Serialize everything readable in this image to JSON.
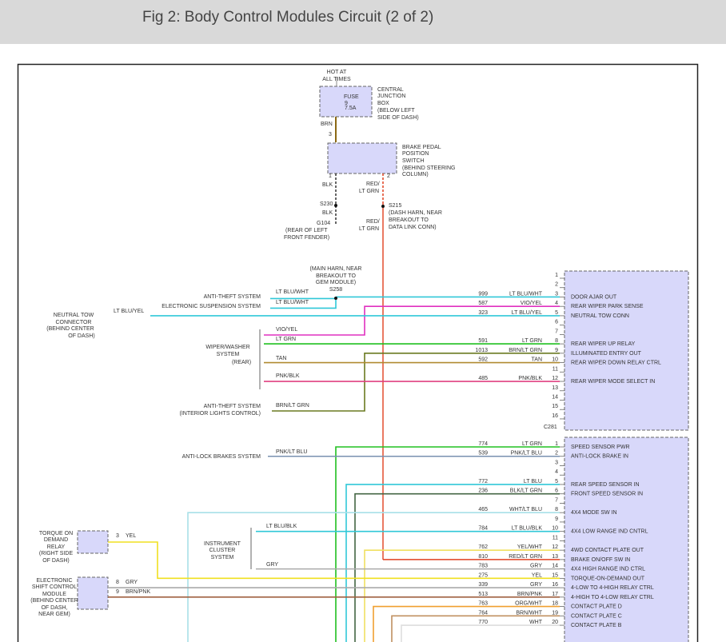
{
  "header": {
    "title": "Fig 2: Body Control Modules Circuit (2 of 2)"
  },
  "labels": [
    "HOT AT",
    "ALL TIMES",
    "FUSE",
    "9",
    "7.5A",
    "CENTRAL",
    "JUNCTION",
    "BOX",
    "(BELOW LEFT",
    "SIDE OF DASH)",
    "BRN",
    "3",
    "BRAKE PEDAL",
    "POSITION",
    "SWITCH",
    "(BEHIND STEERING",
    "COLUMN)",
    "1",
    "2",
    "BLK",
    "RED/",
    "LT GRN",
    "S230",
    "BLK",
    "G104",
    "(REAR OF LEFT",
    "FRONT FENDER)",
    "S215",
    "(DASH HARN, NEAR",
    "BREAKOUT TO",
    "DATA LINK CONN)",
    "RED/",
    "LT GRN",
    "(MAIN HARN, NEAR",
    "BREAKOUT TO",
    "GEM MODULE)",
    "S258",
    "ANTI-THEFT SYSTEM",
    "ELECTRONIC SUSPENSION SYSTEM",
    "LT BLU/WHT",
    "LT BLU/WHT",
    "LT BLU/YEL",
    "NEUTRAL TOW",
    "CONNECTOR",
    "(BEHIND CENTER",
    "OF DASH)",
    "VIO/YEL",
    "LT GRN",
    "WIPER/WASHER",
    "SYSTEM",
    "TAN",
    "(REAR)",
    "PNK/BLK",
    "ANTI-THEFT SYSTEM",
    "(INTERIOR LIGHTS CONTROL)",
    "BRN/LT GRN",
    "ANTI-LOCK BRAKES SYSTEM",
    "PNK/LT BLU",
    "TORQUE ON",
    "DEMAND",
    "RELAY",
    "(RIGHT SIDE",
    "OF DASH)",
    "3",
    "YEL",
    "INSTRUMENT",
    "CLUSTER",
    "SYSTEM",
    "LT BLU/BLK",
    "GRY",
    "ELECTRONIC",
    "SHIFT CONTROL",
    "MODULE",
    "(BEHIND CENTER",
    "OF DASH,",
    "NEAR GEM)",
    "8",
    "GRY",
    "9",
    "BRN/PNK"
  ],
  "connectors": [
    {
      "name": "C281",
      "pins": [
        {
          "pin": 1
        },
        {
          "pin": 2
        },
        {
          "pin": 3,
          "circuit": 999,
          "color": "LT BLU/WHT",
          "function": "DOOR AJAR OUT"
        },
        {
          "pin": 4,
          "circuit": 587,
          "color": "VIO/YEL",
          "function": "REAR WIPER PARK SENSE"
        },
        {
          "pin": 5,
          "circuit": 323,
          "color": "LT BLU/YEL",
          "function": "NEUTRAL TOW CONN"
        },
        {
          "pin": 6
        },
        {
          "pin": 7
        },
        {
          "pin": 8,
          "circuit": 591,
          "color": "LT GRN",
          "function": "REAR WIPER UP RELAY"
        },
        {
          "pin": 9,
          "circuit": 1013,
          "color": "BRN/LT GRN",
          "function": "ILLUMINATED ENTRY OUT"
        },
        {
          "pin": 10,
          "circuit": 592,
          "color": "TAN",
          "function": "REAR WIPER DOWN RELAY CTRL"
        },
        {
          "pin": 11
        },
        {
          "pin": 12,
          "circuit": 485,
          "color": "PNK/BLK",
          "function": "REAR WIPER MODE SELECT IN"
        },
        {
          "pin": 13
        },
        {
          "pin": 14
        },
        {
          "pin": 15
        },
        {
          "pin": 16
        }
      ]
    },
    {
      "pins": [
        {
          "pin": 1,
          "circuit": 774,
          "color": "LT GRN",
          "function": "SPEED SENSOR PWR"
        },
        {
          "pin": 2,
          "circuit": 539,
          "color": "PNK/LT BLU",
          "function": "ANTI-LOCK BRAKE IN"
        },
        {
          "pin": 3
        },
        {
          "pin": 4
        },
        {
          "pin": 5,
          "circuit": 772,
          "color": "LT BLU",
          "function": "REAR SPEED SENSOR IN"
        },
        {
          "pin": 6,
          "circuit": 236,
          "color": "BLK/LT GRN",
          "function": "FRONT SPEED SENSOR IN"
        },
        {
          "pin": 7
        },
        {
          "pin": 8,
          "circuit": 465,
          "color": "WHT/LT BLU",
          "function": "4X4 MODE SW IN"
        },
        {
          "pin": 9
        },
        {
          "pin": 10,
          "circuit": 784,
          "color": "LT BLU/BLK",
          "function": "4X4 LOW RANGE IND CNTRL"
        },
        {
          "pin": 11
        },
        {
          "pin": 12,
          "circuit": 762,
          "color": "YEL/WHT",
          "function": "4WD CONTACT PLATE OUT"
        },
        {
          "pin": 13,
          "circuit": 810,
          "color": "RED/LT GRN",
          "function": "BRAKE ON/OFF SW IN"
        },
        {
          "pin": 14,
          "circuit": 783,
          "color": "GRY",
          "function": "4X4 HIGH RANGE IND CTRL"
        },
        {
          "pin": 15,
          "circuit": 275,
          "color": "YEL",
          "function": "TORQUE-ON-DEMAND OUT"
        },
        {
          "pin": 16,
          "circuit": 339,
          "color": "GRY",
          "function": "4-LOW TO 4-HIGH RELAY CTRL"
        },
        {
          "pin": 17,
          "circuit": 513,
          "color": "BRN/PNK",
          "function": "4-HIGH TO 4-LOW RELAY CTRL"
        },
        {
          "pin": 18,
          "circuit": 763,
          "color": "ORG/WHT",
          "function": "CONTACT PLATE D"
        },
        {
          "pin": 19,
          "circuit": 764,
          "color": "BRN/WHT",
          "function": "CONTACT PLATE C"
        },
        {
          "pin": 20,
          "circuit": 770,
          "color": "WHT",
          "function": "CONTACT PLATE B"
        }
      ]
    }
  ]
}
